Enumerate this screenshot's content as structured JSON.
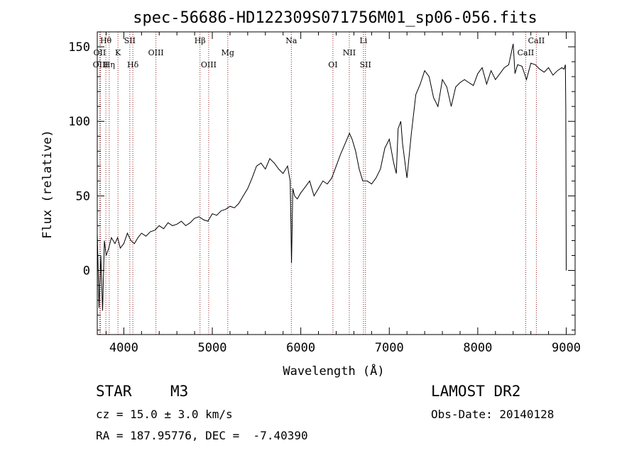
{
  "chart_data": {
    "type": "line",
    "title": "spec-56686-HD122309S071756M01_sp06-056.fits",
    "xlabel": "Wavelength (Å)",
    "ylabel": "Flux (relative)",
    "xlim": [
      3700,
      9100
    ],
    "ylim": [
      -43,
      160
    ],
    "xticks": [
      4000,
      5000,
      6000,
      7000,
      8000,
      9000
    ],
    "yticks": [
      0,
      50,
      100,
      150
    ],
    "grid": false,
    "series": [
      {
        "color": "#000000",
        "x": [
          3700,
          3720,
          3740,
          3760,
          3780,
          3800,
          3830,
          3860,
          3900,
          3930,
          3960,
          4000,
          4040,
          4080,
          4120,
          4160,
          4200,
          4250,
          4300,
          4350,
          4400,
          4450,
          4500,
          4550,
          4600,
          4650,
          4700,
          4750,
          4800,
          4850,
          4900,
          4950,
          5000,
          5050,
          5100,
          5150,
          5200,
          5250,
          5300,
          5350,
          5400,
          5450,
          5500,
          5550,
          5600,
          5650,
          5700,
          5750,
          5800,
          5850,
          5880,
          5895,
          5910,
          5930,
          5960,
          6000,
          6050,
          6100,
          6150,
          6200,
          6250,
          6300,
          6350,
          6400,
          6450,
          6500,
          6550,
          6580,
          6620,
          6660,
          6700,
          6750,
          6800,
          6850,
          6900,
          6950,
          7000,
          7050,
          7080,
          7100,
          7130,
          7150,
          7200,
          7250,
          7300,
          7350,
          7400,
          7450,
          7500,
          7550,
          7600,
          7650,
          7700,
          7750,
          7800,
          7850,
          7900,
          7950,
          8000,
          8050,
          8100,
          8150,
          8200,
          8250,
          8300,
          8350,
          8400,
          8420,
          8450,
          8500,
          8550,
          8600,
          8650,
          8700,
          8750,
          8800,
          8850,
          8900,
          8950,
          8975,
          8990,
          8995,
          9000
        ],
        "y": [
          25,
          -25,
          10,
          -27,
          20,
          10,
          15,
          22,
          18,
          22,
          15,
          18,
          25,
          20,
          18,
          22,
          25,
          23,
          26,
          27,
          30,
          28,
          32,
          30,
          31,
          33,
          30,
          32,
          35,
          36,
          34,
          33,
          38,
          37,
          40,
          41,
          43,
          42,
          45,
          50,
          55,
          62,
          70,
          72,
          68,
          75,
          72,
          68,
          65,
          70,
          60,
          5,
          55,
          50,
          48,
          52,
          56,
          60,
          50,
          55,
          60,
          58,
          62,
          70,
          78,
          85,
          92,
          88,
          80,
          68,
          60,
          60,
          58,
          62,
          68,
          82,
          88,
          72,
          65,
          95,
          100,
          85,
          62,
          92,
          118,
          125,
          134,
          130,
          116,
          110,
          128,
          123,
          110,
          123,
          126,
          128,
          126,
          124,
          132,
          136,
          125,
          134,
          128,
          132,
          136,
          138,
          152,
          132,
          138,
          137,
          128,
          139,
          138,
          135,
          133,
          136,
          131,
          134,
          136,
          135,
          138,
          108,
          0
        ]
      }
    ],
    "lines": [
      {
        "label": "Hθ",
        "x": 3797,
        "row": 1
      },
      {
        "label": "OII",
        "x": 3727,
        "row": 2
      },
      {
        "label": "OIII",
        "x": 3737,
        "row": 3
      },
      {
        "label": "Hη",
        "x": 3835,
        "row": 3
      },
      {
        "label": "K",
        "x": 3934,
        "row": 2
      },
      {
        "label": "SII",
        "x": 4068,
        "row": 1
      },
      {
        "label": "Hδ",
        "x": 4102,
        "row": 3
      },
      {
        "label": "OIII",
        "x": 4363,
        "row": 2
      },
      {
        "label": "Hβ",
        "x": 4861,
        "row": 1
      },
      {
        "label": "OIII",
        "x": 4959,
        "row": 3
      },
      {
        "label": "Mg",
        "x": 5175,
        "row": 2
      },
      {
        "label": "Na",
        "x": 5893,
        "row": 1
      },
      {
        "label": "OI",
        "x": 6363,
        "row": 3
      },
      {
        "label": "NII",
        "x": 6548,
        "row": 2
      },
      {
        "label": "Li",
        "x": 6708,
        "row": 1
      },
      {
        "label": "SII",
        "x": 6731,
        "row": 3
      },
      {
        "label": "CaII",
        "x": 8542,
        "row": 2
      },
      {
        "label": "CaII",
        "x": 8662,
        "row": 1
      }
    ]
  },
  "info": {
    "object_class": "STAR",
    "subclass": "M3",
    "survey": "LAMOST DR2",
    "cz": "cz = 15.0 ± 3.0 km/s",
    "obs_date": "Obs-Date: 20140128",
    "coords": "RA = 187.95776, DEC =  -7.40390"
  }
}
